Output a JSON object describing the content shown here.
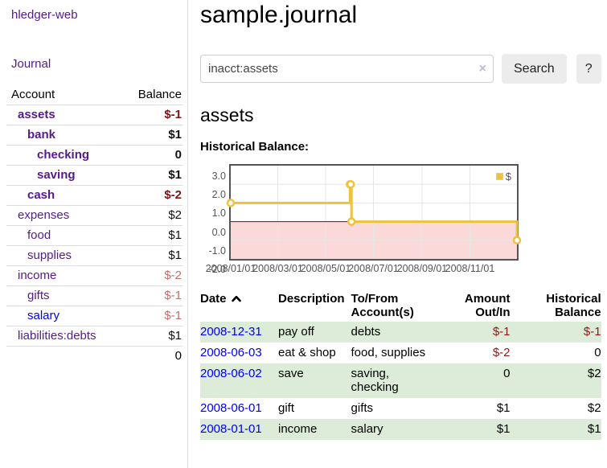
{
  "brand": {
    "title": "hledger-web"
  },
  "nav": {
    "journal": "Journal"
  },
  "sidebar": {
    "headers": {
      "account": "Account",
      "balance": "Balance"
    },
    "accounts": [
      {
        "name": "assets",
        "depth": 1,
        "current": true,
        "balance": "$-1"
      },
      {
        "name": "bank",
        "depth": 2,
        "current": true,
        "balance": "$1"
      },
      {
        "name": "checking",
        "depth": 3,
        "current": true,
        "balance": "0"
      },
      {
        "name": "saving",
        "depth": 3,
        "current": true,
        "balance": "$1"
      },
      {
        "name": "cash",
        "depth": 2,
        "current": true,
        "balance": "$-2"
      },
      {
        "name": "expenses",
        "depth": 1,
        "current": false,
        "balance": "$2"
      },
      {
        "name": "food",
        "depth": 2,
        "current": false,
        "balance": "$1"
      },
      {
        "name": "supplies",
        "depth": 2,
        "current": false,
        "balance": "$1"
      },
      {
        "name": "income",
        "depth": 1,
        "current": false,
        "balance": "$-2"
      },
      {
        "name": "gifts",
        "depth": 2,
        "current": false,
        "balance": "$-1"
      },
      {
        "name": "salary",
        "depth": 2,
        "current": false,
        "balance": "$-1"
      },
      {
        "name": "liabilities:debts",
        "depth": 1,
        "current": false,
        "balance": "$1"
      }
    ],
    "total": "0"
  },
  "main": {
    "title": "sample.journal",
    "account_heading": "assets",
    "chart_heading": "Historical Balance:"
  },
  "search": {
    "value": "inacct:assets",
    "clear_icon": "×",
    "search_button": "Search",
    "help_button": "?"
  },
  "chart_data": {
    "type": "line",
    "step": true,
    "title": "Historical Balance",
    "xlabel": "",
    "ylabel": "",
    "ylim": [
      -2,
      3
    ],
    "yticks": [
      3.0,
      2.0,
      1.0,
      0.0,
      -1.0,
      -2.0
    ],
    "xlim": [
      "2008-01-01",
      "2008-12-31"
    ],
    "xticks": [
      {
        "date": "2008-01-01",
        "label": "2008/01/01"
      },
      {
        "date": "2008-03-01",
        "label": "2008/03/01"
      },
      {
        "date": "2008-05-01",
        "label": "2008/05/01"
      },
      {
        "date": "2008-07-01",
        "label": "2008/07/01"
      },
      {
        "date": "2008-09-01",
        "label": "2008/09/01"
      },
      {
        "date": "2008-11-01",
        "label": "2008/11/01"
      }
    ],
    "series": [
      {
        "name": "$",
        "color": "#edc240",
        "points": [
          {
            "date": "2008-01-01",
            "value": 1
          },
          {
            "date": "2008-06-01",
            "value": 2
          },
          {
            "date": "2008-06-02",
            "value": 2
          },
          {
            "date": "2008-06-03",
            "value": 0
          },
          {
            "date": "2008-12-31",
            "value": -1
          }
        ]
      }
    ],
    "legend": {
      "label": "$",
      "position": "top-right"
    },
    "grid": true,
    "zero_line_color": "#8b0000",
    "negative_region_fill": "#fbd9d9"
  },
  "register": {
    "headers": {
      "date": "Date",
      "description": "Description",
      "accounts": "To/From Account(s)",
      "amount": "Amount Out/In",
      "balance": "Historical Balance"
    },
    "rows": [
      {
        "date": "2008-12-31",
        "description": "pay off",
        "accounts": "debts",
        "amount": "$-1",
        "balance": "$-1"
      },
      {
        "date": "2008-06-03",
        "description": "eat & shop",
        "accounts": "food, supplies",
        "amount": "$-2",
        "balance": "0"
      },
      {
        "date": "2008-06-02",
        "description": "save",
        "accounts": "saving, checking",
        "amount": "0",
        "balance": "$2"
      },
      {
        "date": "2008-06-01",
        "description": "gift",
        "accounts": "gifts",
        "amount": "$1",
        "balance": "$2"
      },
      {
        "date": "2008-01-01",
        "description": "income",
        "accounts": "salary",
        "amount": "$1",
        "balance": "$1"
      }
    ]
  },
  "colors": {
    "link_purple": "#551a8b",
    "link_blue": "#0000ee",
    "negative": "#8b1a1a",
    "bold_negative": "#7f1414",
    "muted_negative": "#c06f6f",
    "series_yellow": "#edc240",
    "row_green": "#dcecd9",
    "zero_line": "#8b0000",
    "negative_region": "#fbd9d9"
  }
}
